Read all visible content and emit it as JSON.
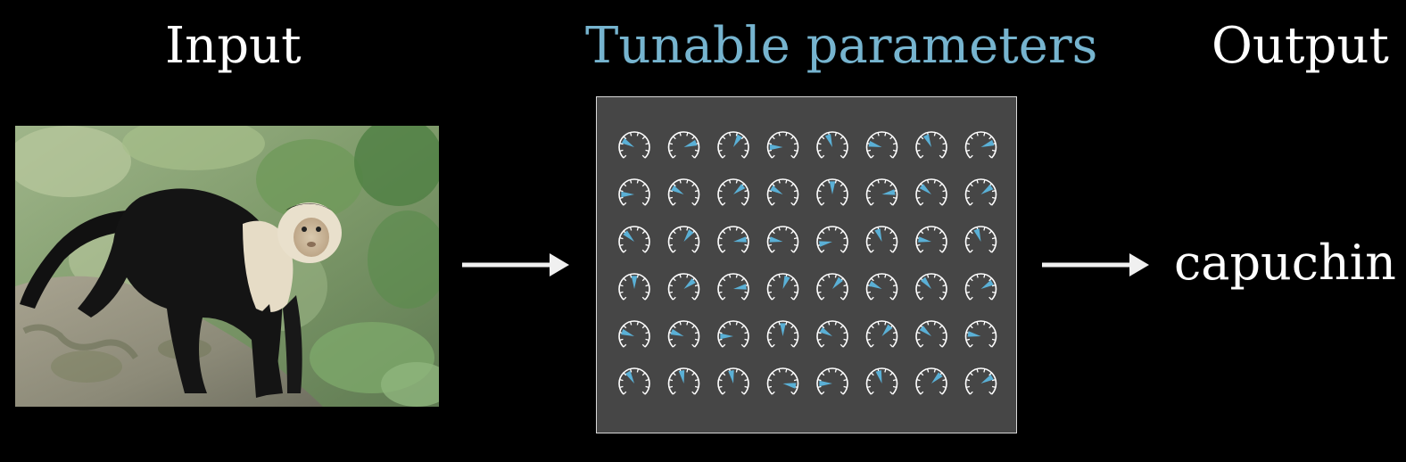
{
  "headings": {
    "input": "Input",
    "params": "Tunable parameters",
    "output": "Output"
  },
  "output": {
    "label": "capuchin"
  },
  "image": {
    "subject": "capuchin-monkey-photo"
  },
  "colors": {
    "background": "#000000",
    "params_heading": "#76b4cf",
    "panel": "#464646",
    "dial_needle": "#5ab0d6",
    "dial_stroke": "#ffffff"
  },
  "dials": {
    "rows": 6,
    "cols": 8,
    "angles": [
      [
        -60,
        70,
        30,
        -90,
        -20,
        -75,
        -25,
        70
      ],
      [
        -90,
        -60,
        50,
        -60,
        0,
        80,
        -50,
        55
      ],
      [
        -45,
        35,
        80,
        -80,
        -100,
        -20,
        -80,
        -20
      ],
      [
        0,
        50,
        80,
        20,
        40,
        -65,
        -40,
        60
      ],
      [
        -70,
        -70,
        -90,
        0,
        -60,
        40,
        -50,
        -80
      ],
      [
        -30,
        -10,
        -10,
        100,
        -90,
        -15,
        45,
        60
      ]
    ]
  }
}
